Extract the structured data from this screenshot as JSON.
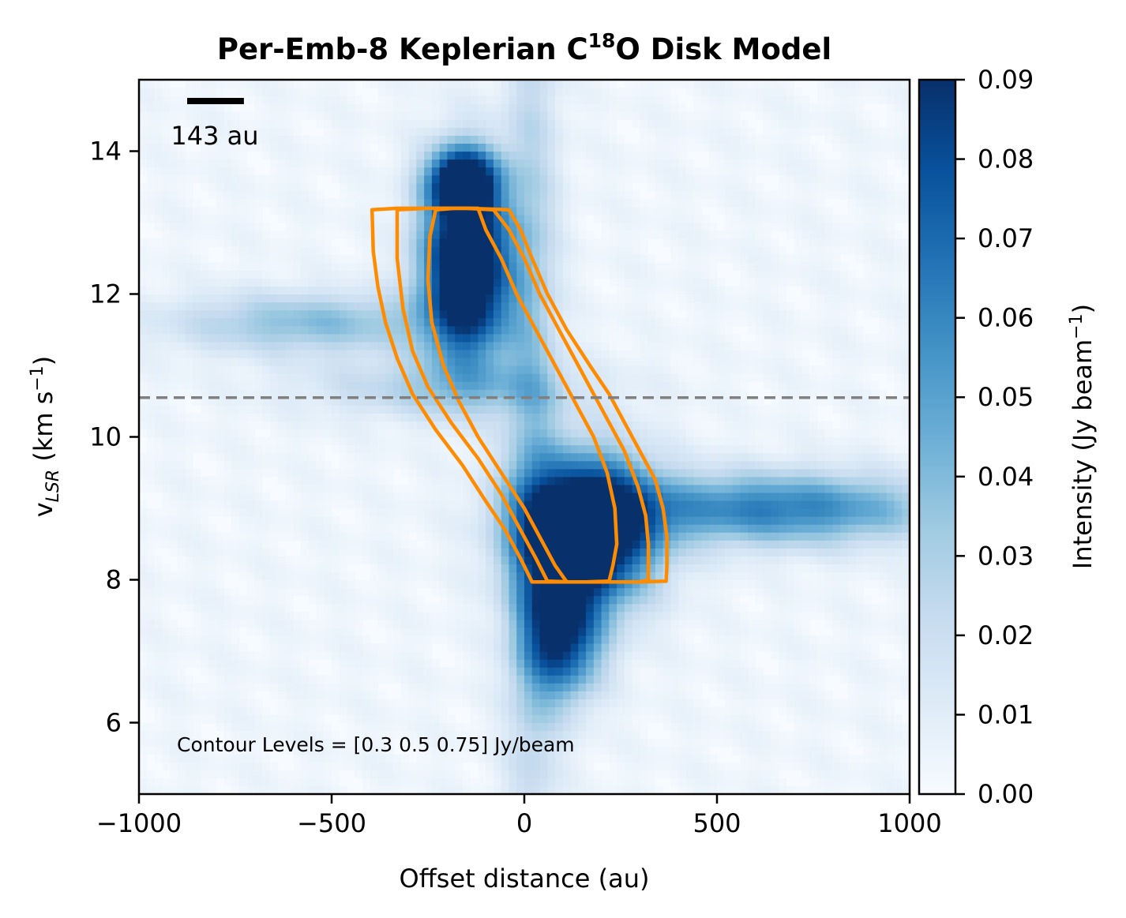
{
  "chart_data": {
    "type": "heatmap",
    "title_main": "Per-Emb-8 Keplerian C",
    "title_sup": "18",
    "title_end": "O Disk Model",
    "xlabel": "Offset distance (au)",
    "ylabel_main": "v",
    "ylabel_sub": "LSR",
    "ylabel_unit": " (km s",
    "ylabel_sup": "−1",
    "ylabel_close": ")",
    "xlim": [
      -1000,
      1000
    ],
    "ylim": [
      5,
      15
    ],
    "x_ticks": [
      -1000,
      -500,
      0,
      500,
      1000
    ],
    "x_tick_labels": [
      "−1000",
      "−500",
      "0",
      "500",
      "1000"
    ],
    "y_ticks": [
      6,
      8,
      10,
      12,
      14
    ],
    "y_tick_labels": [
      "6",
      "8",
      "10",
      "12",
      "14"
    ],
    "systemic_velocity": 10.55,
    "scalebar": {
      "label": "143 au",
      "length_au": 143
    },
    "annotation": "Contour Levels = [0.3  0.5  0.75] Jy/beam",
    "colorbar": {
      "label_main": "Intensity (Jy beam",
      "label_sup": "−1",
      "label_close": ")",
      "range": [
        0,
        0.09
      ],
      "ticks": [
        0.0,
        0.01,
        0.02,
        0.03,
        0.04,
        0.05,
        0.06,
        0.07,
        0.08,
        0.09
      ],
      "tick_labels": [
        "0.00",
        "0.01",
        "0.02",
        "0.03",
        "0.04",
        "0.05",
        "0.06",
        "0.07",
        "0.08",
        "0.09"
      ]
    },
    "contour_levels": [
      0.3,
      0.5,
      0.75
    ],
    "contour_color": "#ff8c00",
    "colors": {
      "low": "#f7fbff",
      "mid": "#6baed6",
      "high": "#08306b",
      "dashed_line": "#808080"
    },
    "emission_components": [
      {
        "name": "redshifted-blob",
        "x_au": -150,
        "v": 12.4,
        "sx_au": 80,
        "sv": 0.9,
        "amp": 0.12
      },
      {
        "name": "redshifted-top",
        "x_au": -160,
        "v": 13.6,
        "sx_au": 60,
        "sv": 0.3,
        "amp": 0.09
      },
      {
        "name": "blueshifted-blob",
        "x_au": 160,
        "v": 8.7,
        "sx_au": 120,
        "sv": 0.7,
        "amp": 0.13
      },
      {
        "name": "blueshifted-tail",
        "x_au": 100,
        "v": 7.2,
        "sx_au": 70,
        "sv": 0.6,
        "amp": 0.08
      },
      {
        "name": "envelope-right",
        "x_au": 650,
        "v": 9.0,
        "sx_au": 300,
        "sv": 0.35,
        "amp": 0.06
      },
      {
        "name": "envelope-left",
        "x_au": -550,
        "v": 11.6,
        "sx_au": 250,
        "sv": 0.3,
        "amp": 0.035
      },
      {
        "name": "vertical-ridge",
        "x_au": 20,
        "v": 10.0,
        "sx_au": 50,
        "sv": 6.0,
        "amp": 0.025
      },
      {
        "name": "mid-band",
        "x_au": -200,
        "v": 10.7,
        "sx_au": 250,
        "sv": 0.3,
        "amp": 0.025
      }
    ],
    "contours": [
      {
        "level": 0.3,
        "points": [
          [
            -395,
            13.18
          ],
          [
            -330,
            13.2
          ],
          [
            -250,
            13.2
          ],
          [
            -150,
            13.2
          ],
          [
            -40,
            13.18
          ],
          [
            -10,
            12.9
          ],
          [
            20,
            12.5
          ],
          [
            60,
            12.0
          ],
          [
            110,
            11.5
          ],
          [
            170,
            11.0
          ],
          [
            220,
            10.6
          ],
          [
            260,
            10.2
          ],
          [
            300,
            9.8
          ],
          [
            340,
            9.4
          ],
          [
            360,
            9.0
          ],
          [
            370,
            8.6
          ],
          [
            370,
            8.2
          ],
          [
            368,
            7.98
          ],
          [
            300,
            7.97
          ],
          [
            200,
            7.97
          ],
          [
            100,
            7.97
          ],
          [
            20,
            7.97
          ],
          [
            -10,
            8.3
          ],
          [
            -50,
            8.7
          ],
          [
            -100,
            9.1
          ],
          [
            -160,
            9.6
          ],
          [
            -230,
            10.1
          ],
          [
            -290,
            10.6
          ],
          [
            -330,
            11.1
          ],
          [
            -360,
            11.6
          ],
          [
            -380,
            12.1
          ],
          [
            -392,
            12.6
          ],
          [
            -395,
            13.18
          ]
        ]
      },
      {
        "level": 0.5,
        "points": [
          [
            -330,
            13.18
          ],
          [
            -250,
            13.2
          ],
          [
            -150,
            13.2
          ],
          [
            -80,
            13.18
          ],
          [
            -40,
            12.9
          ],
          [
            0,
            12.5
          ],
          [
            40,
            12.0
          ],
          [
            90,
            11.5
          ],
          [
            140,
            11.0
          ],
          [
            180,
            10.6
          ],
          [
            220,
            10.2
          ],
          [
            260,
            9.8
          ],
          [
            295,
            9.3
          ],
          [
            315,
            8.9
          ],
          [
            322,
            8.5
          ],
          [
            322,
            8.0
          ],
          [
            300,
            7.97
          ],
          [
            200,
            7.97
          ],
          [
            120,
            7.97
          ],
          [
            60,
            7.98
          ],
          [
            30,
            8.3
          ],
          [
            -10,
            8.7
          ],
          [
            -60,
            9.2
          ],
          [
            -120,
            9.7
          ],
          [
            -190,
            10.2
          ],
          [
            -250,
            10.7
          ],
          [
            -290,
            11.2
          ],
          [
            -315,
            11.8
          ],
          [
            -330,
            12.5
          ],
          [
            -330,
            13.18
          ]
        ]
      },
      {
        "level": 0.75,
        "points": [
          [
            -230,
            13.18
          ],
          [
            -180,
            13.2
          ],
          [
            -120,
            13.2
          ],
          [
            -100,
            12.9
          ],
          [
            -60,
            12.5
          ],
          [
            -20,
            12.0
          ],
          [
            30,
            11.5
          ],
          [
            80,
            11.0
          ],
          [
            130,
            10.5
          ],
          [
            180,
            10.0
          ],
          [
            215,
            9.5
          ],
          [
            235,
            9.0
          ],
          [
            240,
            8.5
          ],
          [
            230,
            8.2
          ],
          [
            220,
            7.98
          ],
          [
            160,
            7.97
          ],
          [
            110,
            7.97
          ],
          [
            80,
            8.2
          ],
          [
            50,
            8.5
          ],
          [
            0,
            9.0
          ],
          [
            -60,
            9.5
          ],
          [
            -120,
            10.0
          ],
          [
            -170,
            10.5
          ],
          [
            -210,
            11.0
          ],
          [
            -240,
            11.6
          ],
          [
            -250,
            12.2
          ],
          [
            -245,
            12.8
          ],
          [
            -230,
            13.18
          ]
        ]
      }
    ]
  }
}
